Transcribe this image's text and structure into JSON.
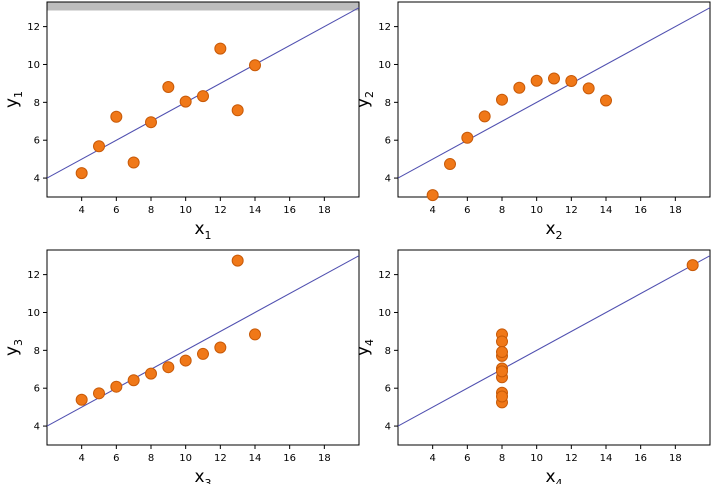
{
  "colors": {
    "point_fill": "#f07818",
    "point_stroke": "#c85a08",
    "fit_line": "#5050b0"
  },
  "chart_data": [
    {
      "type": "scatter",
      "xlabel": {
        "base": "x",
        "sub": "1"
      },
      "ylabel": {
        "base": "y",
        "sub": "1"
      },
      "xlim": [
        2,
        20
      ],
      "ylim": [
        3,
        13.3
      ],
      "xticks": [
        4,
        6,
        8,
        10,
        12,
        14,
        16,
        18
      ],
      "yticks": [
        4,
        6,
        8,
        10,
        12
      ],
      "grid": false,
      "fit_line": {
        "slope": 0.5,
        "intercept": 3
      },
      "x": [
        10,
        8,
        13,
        9,
        11,
        14,
        6,
        4,
        12,
        7,
        5
      ],
      "y": [
        8.04,
        6.95,
        7.58,
        8.81,
        8.33,
        9.96,
        7.24,
        4.26,
        10.84,
        4.82,
        5.68
      ]
    },
    {
      "type": "scatter",
      "xlabel": {
        "base": "x",
        "sub": "2"
      },
      "ylabel": {
        "base": "y",
        "sub": "2"
      },
      "xlim": [
        2,
        20
      ],
      "ylim": [
        3,
        13.3
      ],
      "xticks": [
        4,
        6,
        8,
        10,
        12,
        14,
        16,
        18
      ],
      "yticks": [
        4,
        6,
        8,
        10,
        12
      ],
      "grid": false,
      "fit_line": {
        "slope": 0.5,
        "intercept": 3
      },
      "x": [
        10,
        8,
        13,
        9,
        11,
        14,
        6,
        4,
        12,
        7,
        5
      ],
      "y": [
        9.14,
        8.14,
        8.74,
        8.77,
        9.26,
        8.1,
        6.13,
        3.1,
        9.13,
        7.26,
        4.74
      ]
    },
    {
      "type": "scatter",
      "xlabel": {
        "base": "x",
        "sub": "3"
      },
      "ylabel": {
        "base": "y",
        "sub": "3"
      },
      "xlim": [
        2,
        20
      ],
      "ylim": [
        3,
        13.3
      ],
      "xticks": [
        4,
        6,
        8,
        10,
        12,
        14,
        16,
        18
      ],
      "yticks": [
        4,
        6,
        8,
        10,
        12
      ],
      "grid": false,
      "fit_line": {
        "slope": 0.5,
        "intercept": 3
      },
      "x": [
        10,
        8,
        13,
        9,
        11,
        14,
        6,
        4,
        12,
        7,
        5
      ],
      "y": [
        7.46,
        6.77,
        12.74,
        7.11,
        7.81,
        8.84,
        6.08,
        5.39,
        8.15,
        6.42,
        5.73
      ]
    },
    {
      "type": "scatter",
      "xlabel": {
        "base": "x",
        "sub": "4"
      },
      "ylabel": {
        "base": "y",
        "sub": "4"
      },
      "xlim": [
        2,
        20
      ],
      "ylim": [
        3,
        13.3
      ],
      "xticks": [
        4,
        6,
        8,
        10,
        12,
        14,
        16,
        18
      ],
      "yticks": [
        4,
        6,
        8,
        10,
        12
      ],
      "grid": false,
      "fit_line": {
        "slope": 0.5,
        "intercept": 3
      },
      "x": [
        8,
        8,
        8,
        8,
        8,
        8,
        8,
        19,
        8,
        8,
        8
      ],
      "y": [
        6.58,
        5.76,
        7.71,
        8.84,
        8.47,
        7.04,
        5.25,
        12.5,
        5.56,
        7.91,
        6.89
      ]
    }
  ]
}
